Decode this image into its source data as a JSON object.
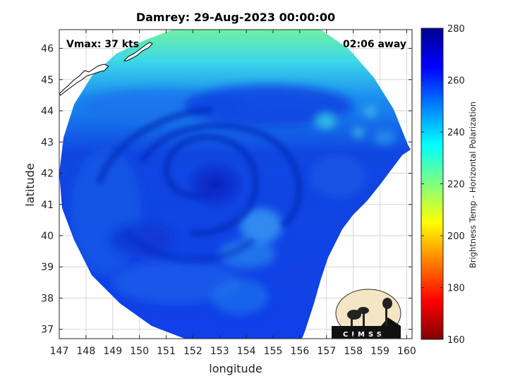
{
  "chart_data": {
    "type": "heatmap",
    "title": "Damrey: 29-Aug-2023 00:00:00",
    "xlabel": "longitude",
    "ylabel": "latitude",
    "xlim": [
      147,
      160.2
    ],
    "ylim": [
      36.7,
      46.6
    ],
    "x_ticks": [
      "147",
      "148",
      "149",
      "150",
      "151",
      "152",
      "153",
      "154",
      "155",
      "156",
      "157",
      "158",
      "159",
      "160"
    ],
    "y_ticks": [
      "37",
      "38",
      "39",
      "40",
      "41",
      "42",
      "43",
      "44",
      "45",
      "46"
    ],
    "grid": true,
    "annotations": {
      "vmax": "Vmax: 37 kts",
      "away": "02:06 away"
    },
    "colorbar": {
      "label": "Brightness Temp - Horizontal Polarization",
      "range": [
        160,
        280
      ],
      "ticks": [
        "280",
        "260",
        "240",
        "220",
        "200",
        "180",
        "160"
      ],
      "colormap": [
        "#7f0000",
        "#ff0000",
        "#ff8000",
        "#ffff00",
        "#80ff80",
        "#00ffff",
        "#0080ff",
        "#0000ff",
        "#00008f"
      ]
    },
    "features": {
      "storm_center": {
        "lon": 152.8,
        "lat": 41.6,
        "brightness_temp": 265
      },
      "swath_edge_brightness_temp_north": 232,
      "swath_brightness_temp_typical": 258
    },
    "logo": "CIMSS",
    "colors": {
      "coast": "#000000",
      "land": "#ffffff",
      "cold": "#0a2fd8",
      "warm_edge": "#5fe6b0"
    }
  }
}
